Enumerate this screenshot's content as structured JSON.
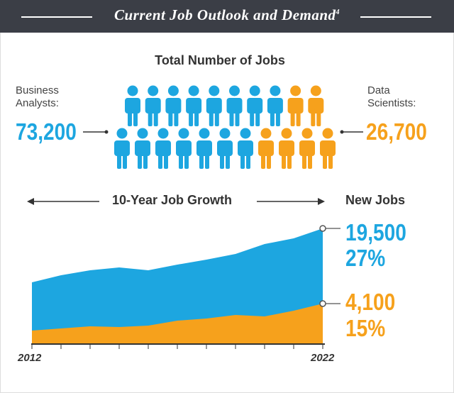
{
  "header": {
    "title": "Current Job Outlook and Demand",
    "footnote": "4"
  },
  "total_jobs": {
    "title": "Total Number of Jobs",
    "business_analysts": {
      "label": [
        "Business",
        "Analysts:"
      ],
      "count": "73,200"
    },
    "data_scientists": {
      "label": [
        "Data",
        "Scientists:"
      ],
      "count": "26,700"
    }
  },
  "growth": {
    "title": "10-Year Job Growth",
    "new_jobs_title": "New Jobs",
    "start_year": "2012",
    "end_year": "2022",
    "business_analysts": {
      "new_jobs": "19,500",
      "percent": "27%"
    },
    "data_scientists": {
      "new_jobs": "4,100",
      "percent": "15%"
    }
  }
}
